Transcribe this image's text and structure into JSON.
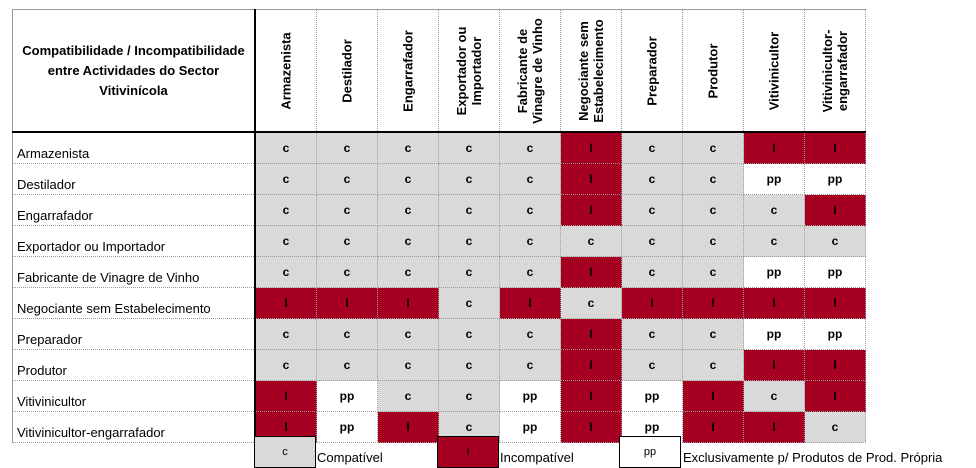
{
  "title_lines": [
    "Compatibilidade / Incompatibilidade",
    "entre Actividades do Sector",
    "Vitivinícola"
  ],
  "columns": [
    "Armazenista",
    "Destilador",
    "Engarrafador",
    "Exportador ou Importador",
    "Fabricante de Vinagre de Vinho",
    "Negociante sem Estabelecimento",
    "Preparador",
    "Produtor",
    "Vitivinicultor",
    "Vitivinicultor-engarrafador"
  ],
  "rows": [
    {
      "label": "Armazenista",
      "cells": [
        "c",
        "c",
        "c",
        "c",
        "c",
        "I",
        "c",
        "c",
        "I",
        "I"
      ]
    },
    {
      "label": "Destilador",
      "cells": [
        "c",
        "c",
        "c",
        "c",
        "c",
        "I",
        "c",
        "c",
        "pp",
        "pp"
      ]
    },
    {
      "label": "Engarrafador",
      "cells": [
        "c",
        "c",
        "c",
        "c",
        "c",
        "I",
        "c",
        "c",
        "c",
        "I"
      ]
    },
    {
      "label": "Exportador ou Importador",
      "cells": [
        "c",
        "c",
        "c",
        "c",
        "c",
        "c",
        "c",
        "c",
        "c",
        "c"
      ]
    },
    {
      "label": "Fabricante de Vinagre de Vinho",
      "cells": [
        "c",
        "c",
        "c",
        "c",
        "c",
        "I",
        "c",
        "c",
        "pp",
        "pp"
      ]
    },
    {
      "label": "Negociante sem Estabelecimento",
      "cells": [
        "I",
        "I",
        "I",
        "c",
        "I",
        "c",
        "I",
        "I",
        "I",
        "I"
      ]
    },
    {
      "label": "Preparador",
      "cells": [
        "c",
        "c",
        "c",
        "c",
        "c",
        "I",
        "c",
        "c",
        "pp",
        "pp"
      ]
    },
    {
      "label": "Produtor",
      "cells": [
        "c",
        "c",
        "c",
        "c",
        "c",
        "I",
        "c",
        "c",
        "I",
        "I"
      ]
    },
    {
      "label": "Vitivinicultor",
      "cells": [
        "I",
        "pp",
        "c",
        "c",
        "pp",
        "I",
        "pp",
        "I",
        "c",
        "I"
      ]
    },
    {
      "label": "Vitivinicultor-engarrafador",
      "cells": [
        "I",
        "pp",
        "I",
        "c",
        "pp",
        "I",
        "pp",
        "I",
        "I",
        "c"
      ]
    }
  ],
  "legend": [
    {
      "code": "c",
      "text": "Compatível",
      "color": "#d9d9d9"
    },
    {
      "code": "I",
      "text": "Incompatível",
      "color": "#a50021"
    },
    {
      "code": "pp",
      "text": "Exclusivamente p/ Produtos de Prod. Própria",
      "color": "#ffffff"
    }
  ]
}
